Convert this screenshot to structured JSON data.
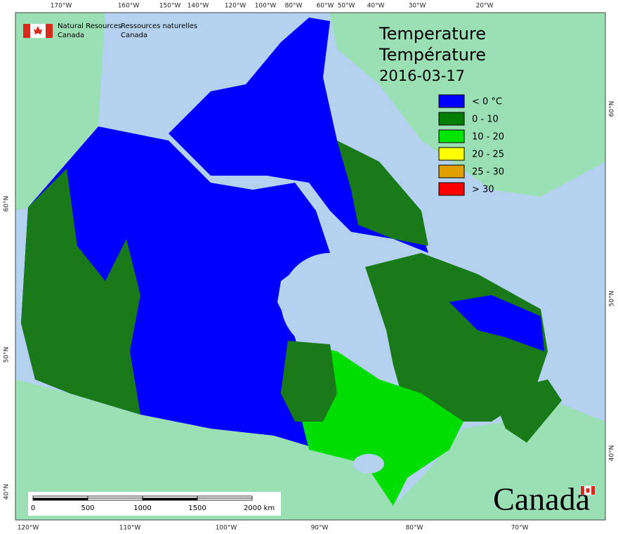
{
  "header": {
    "org_en": [
      "Natural Resources",
      "Canada"
    ],
    "org_fr": [
      "Ressources naturelles",
      "Canada"
    ]
  },
  "title": {
    "lines": [
      "Temperature",
      "Température",
      "2016-03-17"
    ]
  },
  "legend": {
    "items": [
      {
        "label": "< 0 °C",
        "color": "#0000ff"
      },
      {
        "label": "0 - 10",
        "color": "#007f00"
      },
      {
        "label": "10 - 20",
        "color": "#00e600"
      },
      {
        "label": "20 - 25",
        "color": "#ffff00"
      },
      {
        "label": "25 - 30",
        "color": "#e0a000"
      },
      {
        "label": "> 30",
        "color": "#ff0000"
      }
    ]
  },
  "graticule": {
    "top": [
      "170°W",
      "160°W",
      "150°W",
      "140°W",
      "120°W",
      "100°W",
      "80°W",
      "60°W",
      "50°W",
      "40°W",
      "30°W",
      "20°W"
    ],
    "bottom": [
      "120°W",
      "110°W",
      "100°W",
      "90°W",
      "80°W",
      "70°W"
    ],
    "left": [
      "60°N",
      "50°N",
      "40°N"
    ],
    "right": [
      "60°N",
      "50°N",
      "40°N"
    ]
  },
  "scale_bar": {
    "labels": [
      "0",
      "500",
      "1000",
      "1500",
      "2000 km"
    ]
  },
  "wordmark": "Canada"
}
